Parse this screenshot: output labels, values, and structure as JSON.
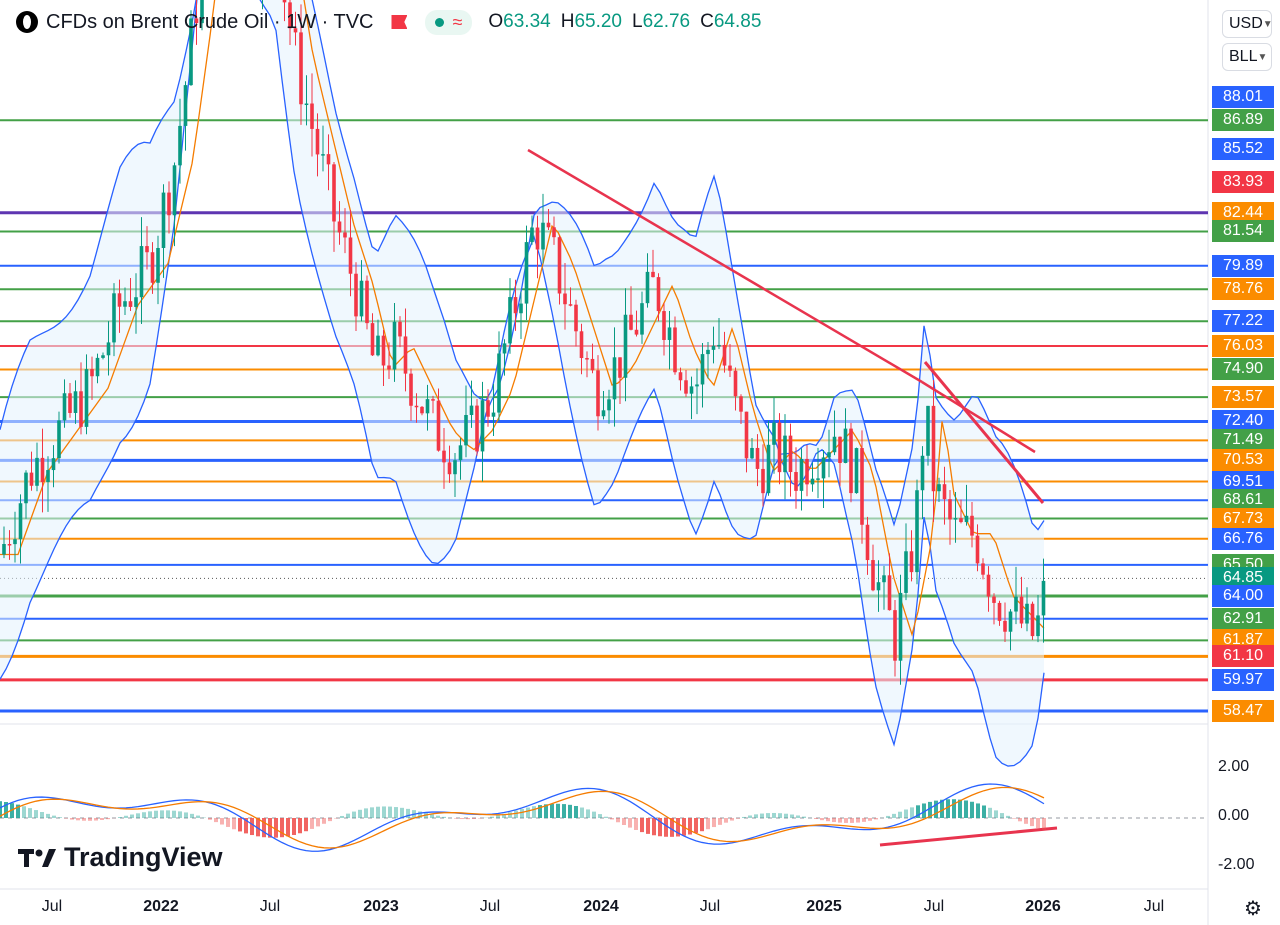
{
  "header": {
    "title": "CFDs on Brent Crude Oil · 1W · TVC",
    "ohlc": [
      {
        "key": "O",
        "value": "63.34"
      },
      {
        "key": "H",
        "value": "65.20"
      },
      {
        "key": "L",
        "value": "62.76"
      },
      {
        "key": "C",
        "value": "64.85"
      }
    ]
  },
  "currency_selector": {
    "value": "USD"
  },
  "unit_selector": {
    "value": "BLL"
  },
  "price_axis_labels": [
    {
      "text": "88.01",
      "color": "#2962ff"
    },
    {
      "text": "86.89",
      "color": "#43a047"
    },
    {
      "text": "85.52",
      "color": "#2962ff"
    },
    {
      "text": "83.93",
      "color": "#f23645"
    },
    {
      "text": "82.44",
      "color": "#fb8c00"
    },
    {
      "text": "81.54",
      "color": "#43a047"
    },
    {
      "text": "79.89",
      "color": "#2962ff"
    },
    {
      "text": "78.76",
      "color": "#fb8c00"
    },
    {
      "text": "77.22",
      "color": "#2962ff"
    },
    {
      "text": "76.03",
      "color": "#fb8c00"
    },
    {
      "text": "74.90",
      "color": "#43a047"
    },
    {
      "text": "73.57",
      "color": "#fb8c00"
    },
    {
      "text": "72.40",
      "color": "#2962ff"
    },
    {
      "text": "71.49",
      "color": "#43a047"
    },
    {
      "text": "70.53",
      "color": "#fb8c00"
    },
    {
      "text": "69.51",
      "color": "#2962ff"
    },
    {
      "text": "68.61",
      "color": "#43a047"
    },
    {
      "text": "67.73",
      "color": "#fb8c00"
    },
    {
      "text": "66.76",
      "color": "#2962ff"
    },
    {
      "text": "65.50",
      "color": "#43a047"
    },
    {
      "text": "64.85",
      "color": "#089981"
    },
    {
      "text": "64.00",
      "color": "#2962ff"
    },
    {
      "text": "62.91",
      "color": "#43a047"
    },
    {
      "text": "61.87",
      "color": "#fb8c00"
    },
    {
      "text": "61.10",
      "color": "#f23645"
    },
    {
      "text": "59.97",
      "color": "#2962ff"
    },
    {
      "text": "58.47",
      "color": "#fb8c00"
    }
  ],
  "macd_axis_labels": [
    "2.00",
    "0.00",
    "-2.00"
  ],
  "time_axis_labels": [
    {
      "text": "Jul",
      "bold": false
    },
    {
      "text": "2022",
      "bold": true
    },
    {
      "text": "Jul",
      "bold": false
    },
    {
      "text": "2023",
      "bold": true
    },
    {
      "text": "Jul",
      "bold": false
    },
    {
      "text": "2024",
      "bold": true
    },
    {
      "text": "Jul",
      "bold": false
    },
    {
      "text": "2025",
      "bold": true
    },
    {
      "text": "Jul",
      "bold": false
    },
    {
      "text": "2026",
      "bold": true
    },
    {
      "text": "Jul",
      "bold": false
    }
  ],
  "branding": {
    "logo_text": "TradingView"
  },
  "colors": {
    "up": "#089981",
    "down": "#f23645",
    "trendline": "#e8344e",
    "bollinger": "#2962ff",
    "ma": "#f57c00",
    "band_fill": "#e3f2fd"
  }
}
